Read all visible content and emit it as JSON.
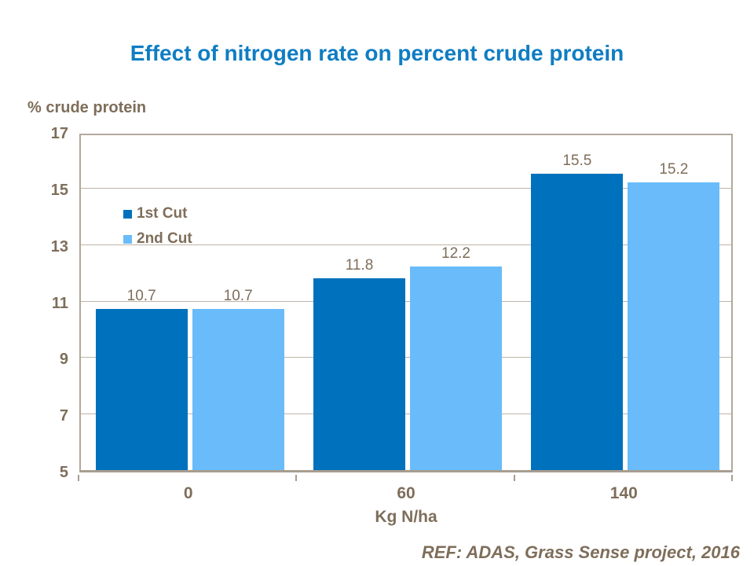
{
  "title": "Effect of nitrogen rate on percent crude protein",
  "y_axis_title": "% crude protein",
  "x_axis_title": "Kg N/ha",
  "footer": "REF: ADAS, Grass Sense project, 2016",
  "colors": {
    "title": "#0F7DC3",
    "text": "#7E6E5A",
    "axis": "#B3A89B",
    "gridline": "#BFB5A8",
    "series1": "#0071BC",
    "series2": "#69BCF9"
  },
  "chart_data": {
    "type": "bar",
    "title": "Effect of nitrogen rate on percent crude protein",
    "xlabel": "Kg N/ha",
    "ylabel": "% crude protein",
    "categories": [
      "0",
      "60",
      "140"
    ],
    "series": [
      {
        "name": "1st Cut",
        "color": "#0071BC",
        "values": [
          10.7,
          11.8,
          15.5
        ]
      },
      {
        "name": "2nd Cut",
        "color": "#69BCF9",
        "values": [
          10.7,
          12.2,
          15.2
        ]
      }
    ],
    "ylim": [
      5,
      17
    ],
    "yticks": [
      5,
      7,
      9,
      11,
      13,
      15,
      17
    ],
    "grid": true,
    "legend_position": "inside-top-left",
    "data_labels": true
  }
}
